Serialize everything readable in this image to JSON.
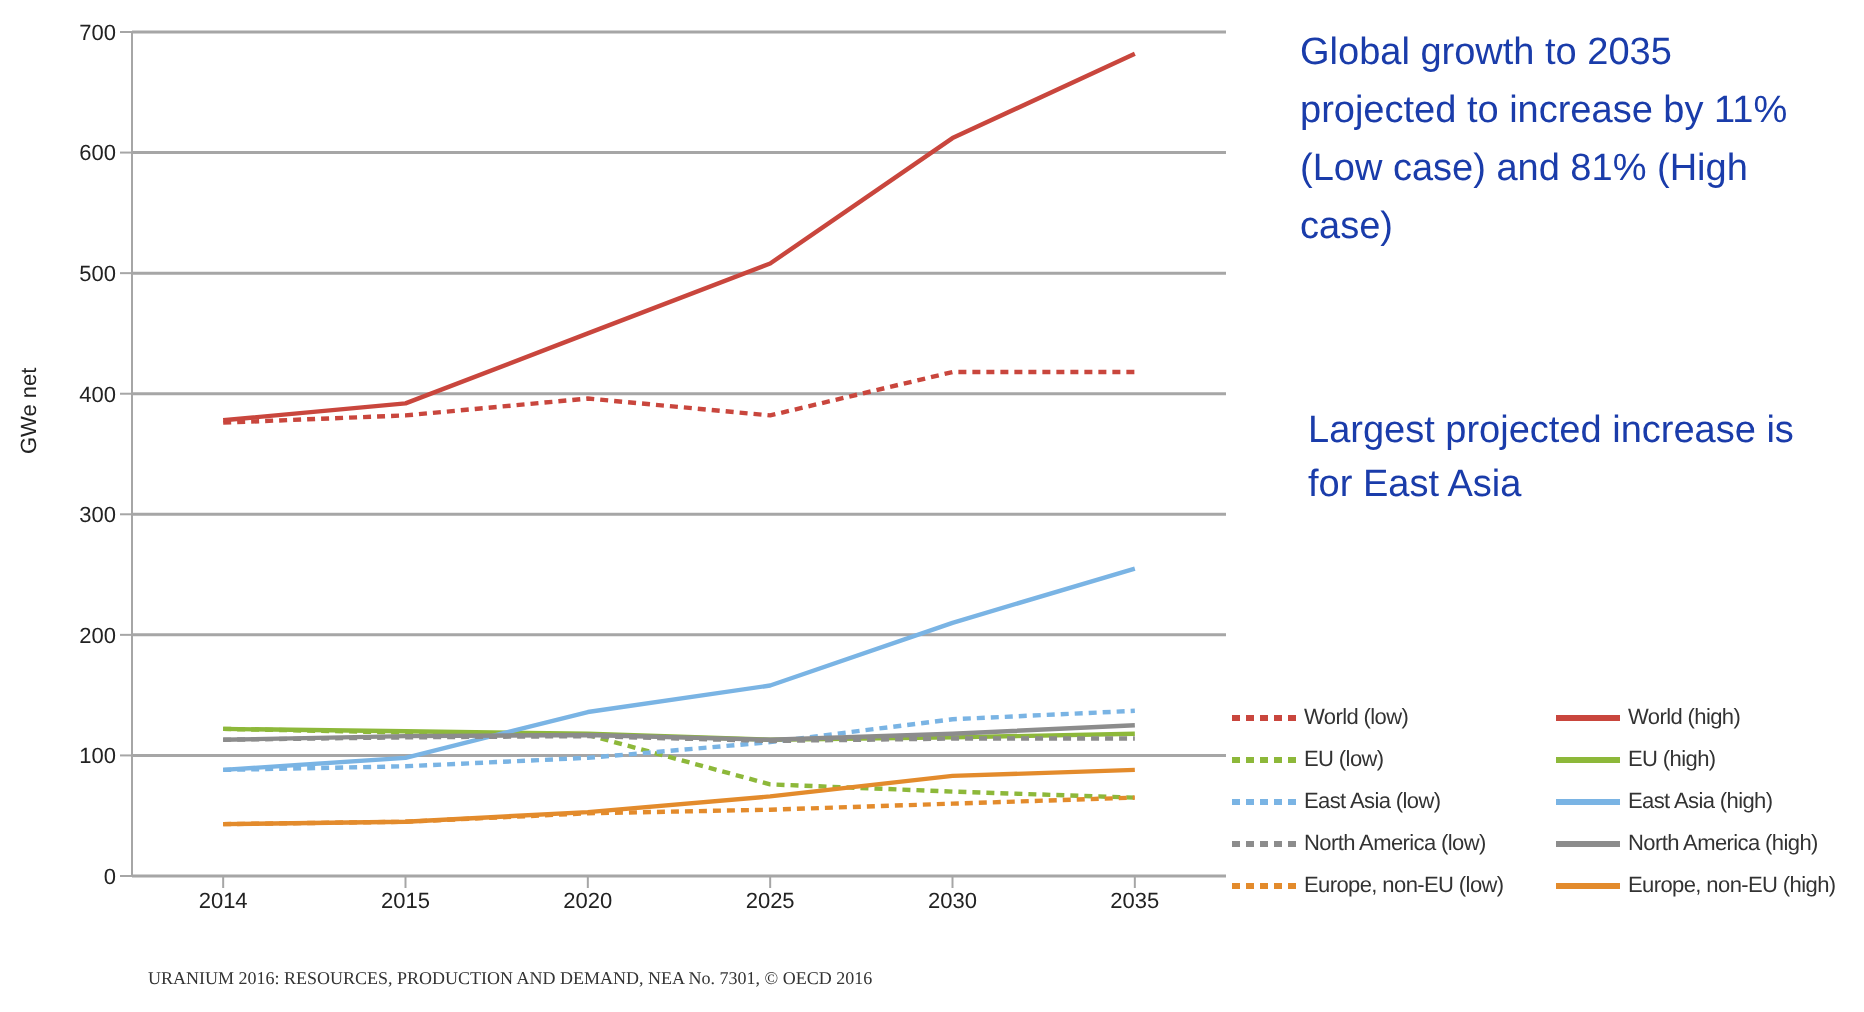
{
  "chart_data": {
    "type": "line",
    "ylabel": "GWe net",
    "categories": [
      "2014",
      "2015",
      "2020",
      "2025",
      "2030",
      "2035"
    ],
    "ylim": [
      0,
      700
    ],
    "yticks": [
      0,
      100,
      200,
      300,
      400,
      500,
      600,
      700
    ],
    "grid": "y",
    "legend": "bottom right",
    "marker": "none",
    "series": [
      {
        "name": "World (low)",
        "color": "#c9463d",
        "line_style": "dashed",
        "values": [
          376,
          382,
          396,
          382,
          418,
          418
        ]
      },
      {
        "name": "World (high)",
        "color": "#c9463d",
        "line_style": "solid",
        "values": [
          378,
          392,
          450,
          508,
          612,
          682
        ]
      },
      {
        "name": "EU (low)",
        "color": "#8db83a",
        "line_style": "dashed",
        "values": [
          122,
          119,
          117,
          76,
          70,
          65
        ]
      },
      {
        "name": "EU (high)",
        "color": "#8db83a",
        "line_style": "solid",
        "values": [
          122,
          120,
          118,
          113,
          115,
          118
        ]
      },
      {
        "name": "East Asia (low)",
        "color": "#7ab4e4",
        "line_style": "dashed",
        "values": [
          88,
          91,
          98,
          111,
          130,
          137
        ]
      },
      {
        "name": "East Asia (high)",
        "color": "#7ab4e4",
        "line_style": "solid",
        "values": [
          88,
          98,
          136,
          158,
          210,
          255
        ]
      },
      {
        "name": "North America (low)",
        "color": "#8c8c8c",
        "line_style": "dashed",
        "values": [
          113,
          115,
          116,
          112,
          114,
          114
        ]
      },
      {
        "name": "North America (high)",
        "color": "#8c8c8c",
        "line_style": "solid",
        "values": [
          113,
          116,
          117,
          113,
          118,
          125
        ]
      },
      {
        "name": "Europe, non-EU (low)",
        "color": "#e38b2c",
        "line_style": "dashed",
        "values": [
          43,
          45,
          52,
          55,
          60,
          65
        ]
      },
      {
        "name": "Europe, non-EU (high)",
        "color": "#e38b2c",
        "line_style": "solid",
        "values": [
          43,
          45,
          53,
          66,
          83,
          88
        ]
      }
    ],
    "annotations": [
      "Global growth to 2035 projected to increase by 11% (Low case) and 81% (High case)",
      "Largest projected increase is for East Asia",
      "URANIUM 2016: RESOURCES, PRODUCTION AND DEMAND, NEA No. 7301, © OECD 2016"
    ]
  }
}
